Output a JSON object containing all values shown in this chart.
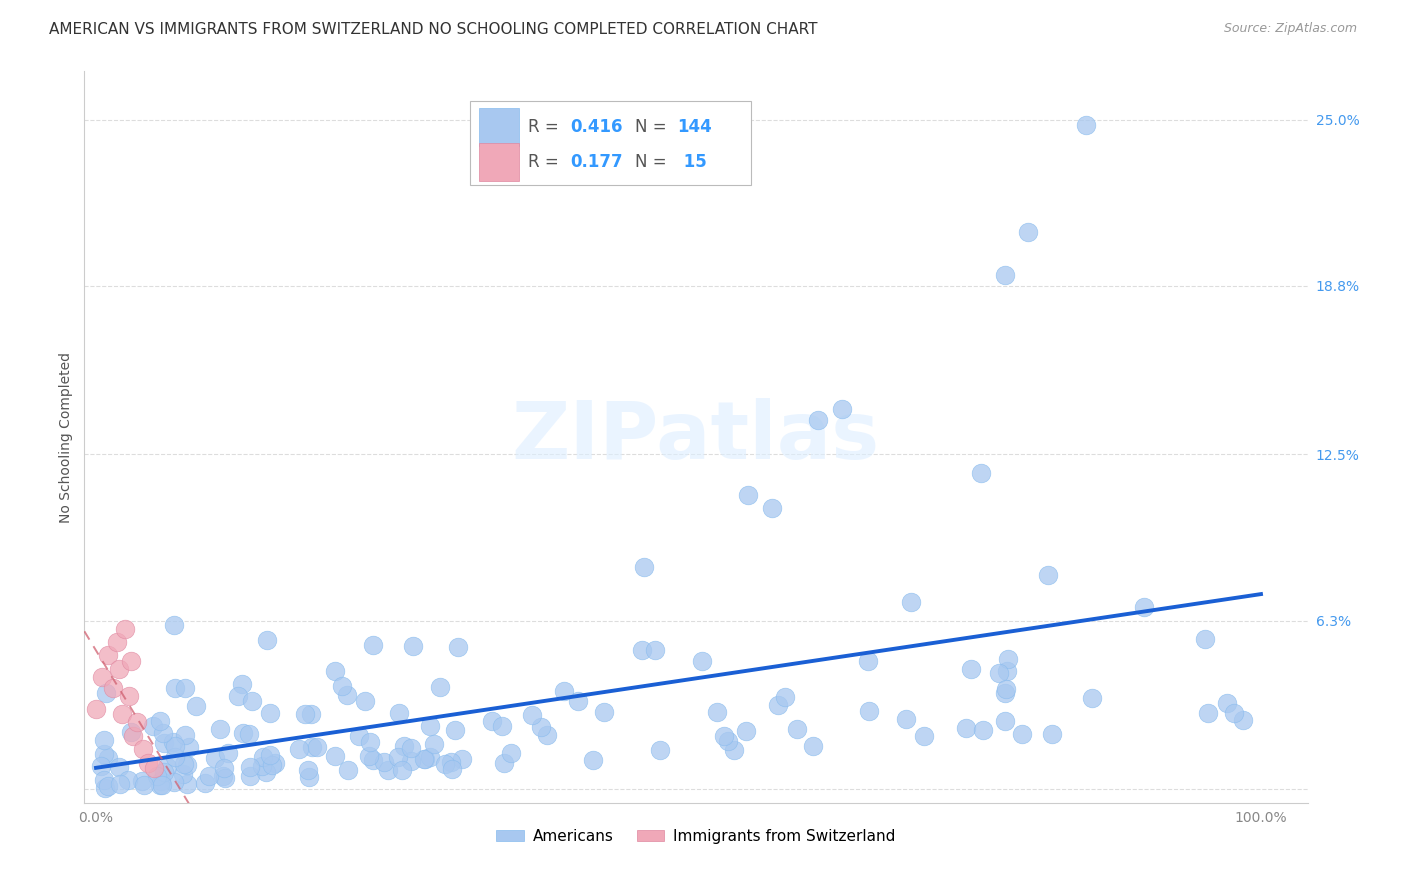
{
  "title": "AMERICAN VS IMMIGRANTS FROM SWITZERLAND NO SCHOOLING COMPLETED CORRELATION CHART",
  "source": "Source: ZipAtlas.com",
  "ylabel": "No Schooling Completed",
  "yticks": [
    0.0,
    0.063,
    0.125,
    0.188,
    0.25
  ],
  "ytick_labels": [
    "",
    "6.3%",
    "12.5%",
    "18.8%",
    "25.0%"
  ],
  "xlim": [
    -0.01,
    1.04
  ],
  "ylim": [
    -0.005,
    0.268
  ],
  "american_color": "#a8c8f0",
  "swiss_color": "#f0a8b8",
  "trend_american_color": "#1a5fd4",
  "trend_swiss_color": "#d06070",
  "background_color": "#ffffff",
  "grid_color": "#dddddd",
  "title_fontsize": 11,
  "axis_label_fontsize": 10,
  "tick_fontsize": 10,
  "legend_r1_color": "#4499ee",
  "legend_r2_color": "#4499ee",
  "watermark_color": "#ddeeff",
  "right_tick_color": "#4499ee",
  "bottom_tick_color": "#888888"
}
